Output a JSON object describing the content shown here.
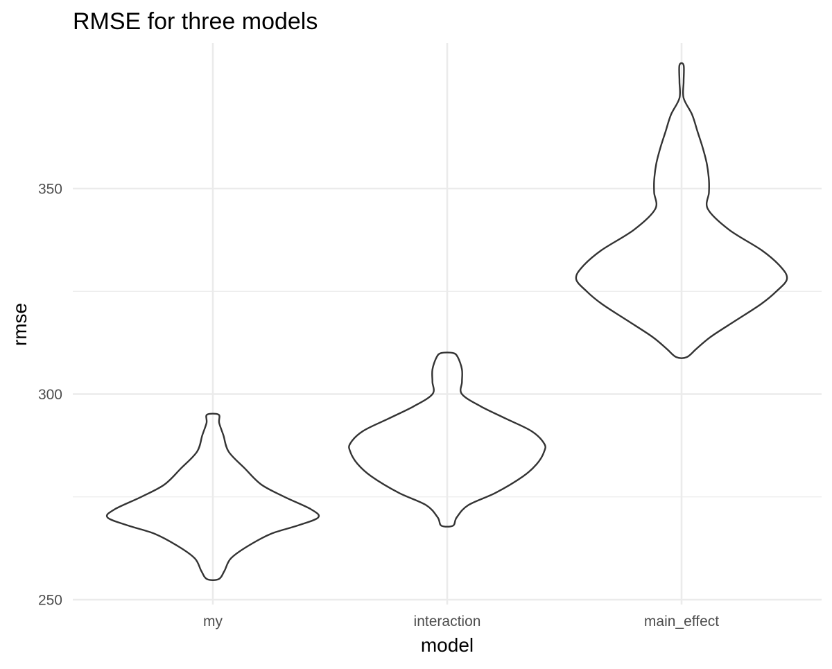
{
  "chart_data": {
    "type": "violin",
    "title": "RMSE for three models",
    "xlabel": "model",
    "ylabel": "rmse",
    "categories": [
      "my",
      "interaction",
      "main_effect"
    ],
    "y_ticks": [
      250,
      300,
      350
    ],
    "y_minor_ticks": [
      275,
      325
    ],
    "ylim": [
      248.5,
      386
    ],
    "grid": true,
    "colors": {
      "grid": "#ebebeb",
      "outline": "#333333",
      "text": "#000000",
      "tick_text": "#4d4d4d"
    },
    "series": [
      {
        "category": "my",
        "min": 255,
        "max": 295,
        "profile": [
          [
            255,
            0.055
          ],
          [
            257,
            0.11
          ],
          [
            260,
            0.17
          ],
          [
            263,
            0.33
          ],
          [
            266,
            0.55
          ],
          [
            268,
            0.8
          ],
          [
            270,
            1.0
          ],
          [
            272,
            0.93
          ],
          [
            275,
            0.68
          ],
          [
            278,
            0.46
          ],
          [
            282,
            0.3
          ],
          [
            286,
            0.15
          ],
          [
            290,
            0.1
          ],
          [
            293,
            0.06
          ],
          [
            295,
            0.055
          ]
        ]
      },
      {
        "category": "interaction",
        "min": 268,
        "max": 310,
        "profile": [
          [
            268,
            0.055
          ],
          [
            270,
            0.09
          ],
          [
            273,
            0.2
          ],
          [
            276,
            0.46
          ],
          [
            280,
            0.72
          ],
          [
            283,
            0.85
          ],
          [
            286,
            0.92
          ],
          [
            288,
            0.92
          ],
          [
            291,
            0.8
          ],
          [
            294,
            0.56
          ],
          [
            297,
            0.32
          ],
          [
            300,
            0.14
          ],
          [
            303,
            0.14
          ],
          [
            306,
            0.14
          ],
          [
            309,
            0.1
          ],
          [
            310,
            0.055
          ]
        ]
      },
      {
        "category": "main_effect",
        "min": 309,
        "max": 380,
        "profile": [
          [
            309,
            0.05
          ],
          [
            311,
            0.14
          ],
          [
            314,
            0.28
          ],
          [
            318,
            0.52
          ],
          [
            322,
            0.76
          ],
          [
            325,
            0.9
          ],
          [
            328,
            1.0
          ],
          [
            331,
            0.94
          ],
          [
            335,
            0.76
          ],
          [
            340,
            0.45
          ],
          [
            345,
            0.25
          ],
          [
            349,
            0.26
          ],
          [
            352,
            0.26
          ],
          [
            356,
            0.24
          ],
          [
            360,
            0.2
          ],
          [
            364,
            0.15
          ],
          [
            368,
            0.1
          ],
          [
            372,
            0.02
          ],
          [
            376,
            0.02
          ],
          [
            380,
            0.02
          ]
        ]
      }
    ]
  }
}
